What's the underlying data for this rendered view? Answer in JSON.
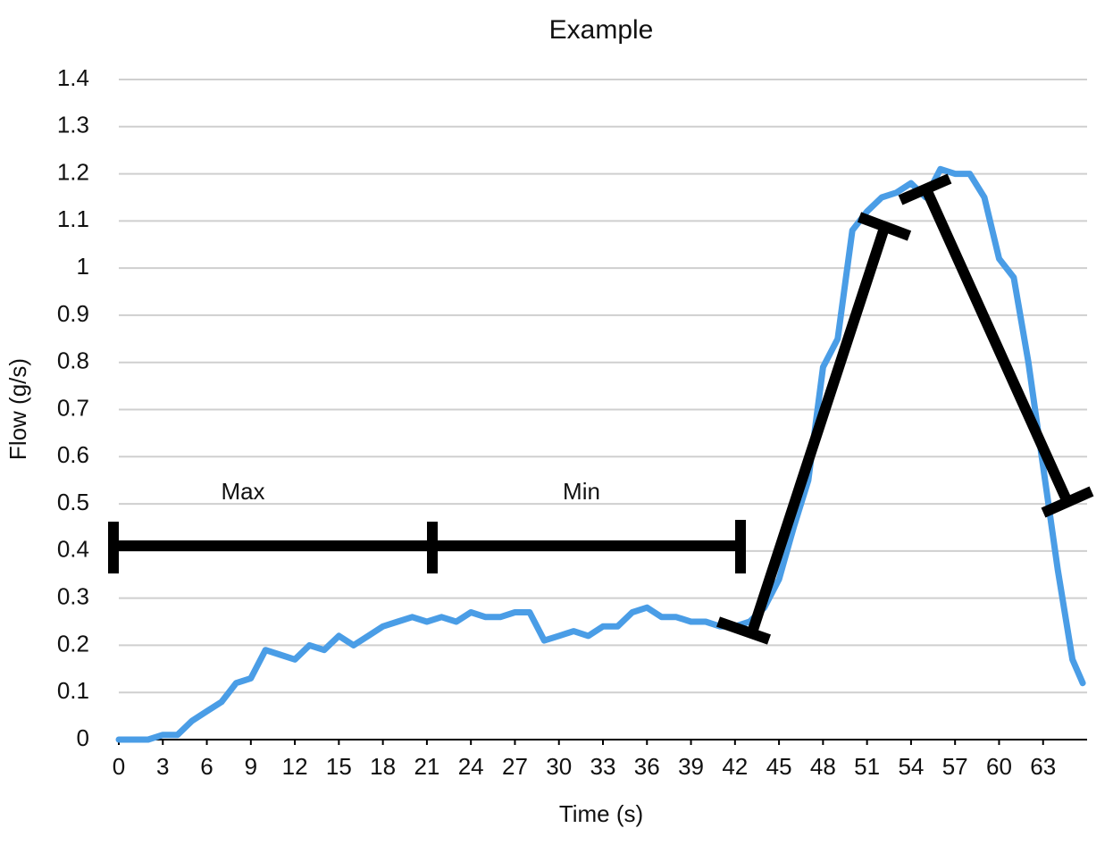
{
  "chart_data": {
    "type": "line",
    "title": "Example",
    "x_label": "Time (s)",
    "y_label": "Flow (g/s)",
    "x": [
      0,
      1,
      2,
      3,
      4,
      5,
      6,
      7,
      8,
      9,
      10,
      11,
      12,
      13,
      14,
      15,
      16,
      17,
      18,
      19,
      20,
      21,
      22,
      23,
      24,
      25,
      26,
      27,
      28,
      29,
      30,
      31,
      32,
      33,
      34,
      35,
      36,
      37,
      38,
      39,
      40,
      41,
      42,
      43,
      44,
      45,
      46,
      47,
      48,
      49,
      50,
      51,
      52,
      53,
      54,
      55,
      56,
      57,
      58,
      59,
      60,
      61,
      62,
      63,
      64,
      65,
      65.7
    ],
    "values": [
      0,
      0,
      0,
      0.01,
      0.01,
      0.04,
      0.06,
      0.08,
      0.12,
      0.13,
      0.19,
      0.18,
      0.17,
      0.2,
      0.19,
      0.22,
      0.2,
      0.22,
      0.24,
      0.25,
      0.26,
      0.25,
      0.26,
      0.25,
      0.27,
      0.26,
      0.26,
      0.27,
      0.27,
      0.21,
      0.22,
      0.23,
      0.22,
      0.24,
      0.24,
      0.27,
      0.28,
      0.26,
      0.26,
      0.25,
      0.25,
      0.24,
      0.24,
      0.25,
      0.28,
      0.34,
      0.45,
      0.55,
      0.79,
      0.85,
      1.08,
      1.12,
      1.15,
      1.16,
      1.18,
      1.15,
      1.21,
      1.2,
      1.2,
      1.15,
      1.02,
      0.98,
      0.8,
      0.58,
      0.36,
      0.17,
      0.12
    ],
    "color": "#4a9de6",
    "xlim": [
      0,
      66
    ],
    "xticks": [
      0,
      3,
      6,
      9,
      12,
      15,
      18,
      21,
      24,
      27,
      30,
      33,
      36,
      39,
      42,
      45,
      48,
      51,
      54,
      57,
      60,
      63
    ],
    "ylim": [
      0,
      1.4
    ],
    "yticks": [
      0,
      0.1,
      0.2,
      0.3,
      0.4,
      0.5,
      0.6,
      0.7,
      0.8,
      0.9,
      1,
      1.1,
      1.2,
      1.3,
      1.4
    ],
    "grid": true,
    "annotations": [
      "Max",
      "Min"
    ]
  }
}
